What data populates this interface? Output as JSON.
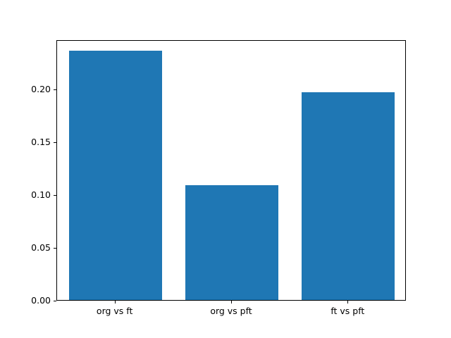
{
  "chart_data": {
    "type": "bar",
    "categories": [
      "org vs ft",
      "org vs pft",
      "ft vs pft"
    ],
    "values": [
      0.236,
      0.109,
      0.197
    ],
    "title": "",
    "xlabel": "",
    "ylabel": "",
    "ylim": [
      0,
      0.2467
    ],
    "yticks": [
      0.0,
      0.05,
      0.1,
      0.15,
      0.2
    ],
    "ytick_labels": [
      "0.00",
      "0.05",
      "0.10",
      "0.15",
      "0.20"
    ],
    "bar_color": "#1f77b4",
    "background": "#ffffff",
    "grid": false,
    "legend": "none"
  }
}
